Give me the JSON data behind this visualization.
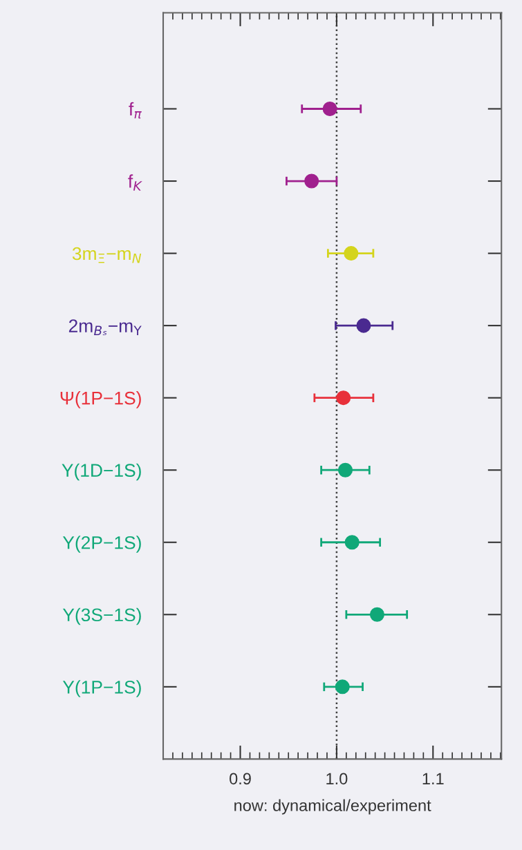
{
  "chart_data": {
    "type": "scatter",
    "orientation": "horizontal",
    "xlabel": "now: dynamical/experiment",
    "categories": [
      "f$_{π}$",
      "f$_{K}$",
      "3m$_{Ξ}$−m$_{N}$",
      "2m$_{Bₛ}$−m$_{Υ}$",
      "Ψ(1P−1S)",
      "Υ(1D−1S)",
      "Υ(2P−1S)",
      "Υ(3S−1S)",
      "Υ(1P−1S)"
    ],
    "values": [
      0.993,
      0.974,
      1.015,
      1.028,
      1.007,
      1.009,
      1.016,
      1.042,
      1.006
    ],
    "errors": [
      [
        0.964,
        1.025
      ],
      [
        0.948,
        1.0
      ],
      [
        0.991,
        1.038
      ],
      [
        0.999,
        1.058
      ],
      [
        0.977,
        1.038
      ],
      [
        0.984,
        1.034
      ],
      [
        0.984,
        1.045
      ],
      [
        1.01,
        1.073
      ],
      [
        0.987,
        1.027
      ]
    ],
    "colors": [
      "#a0208e",
      "#a0208e",
      "#d4d41c",
      "#4a2a90",
      "#e8303a",
      "#10a878",
      "#10a878",
      "#10a878",
      "#10a878"
    ],
    "xlim": [
      0.82,
      1.171
    ],
    "xticks": [
      0.9,
      {
        "value": 1.0,
        "label": "1.0"
      },
      1.1
    ],
    "ref_lines": [
      {
        "axis": "x",
        "value": 1.0,
        "color": "#404040",
        "line_style": "dotted"
      }
    ],
    "marker": "circle",
    "grid": false,
    "legend": false
  }
}
